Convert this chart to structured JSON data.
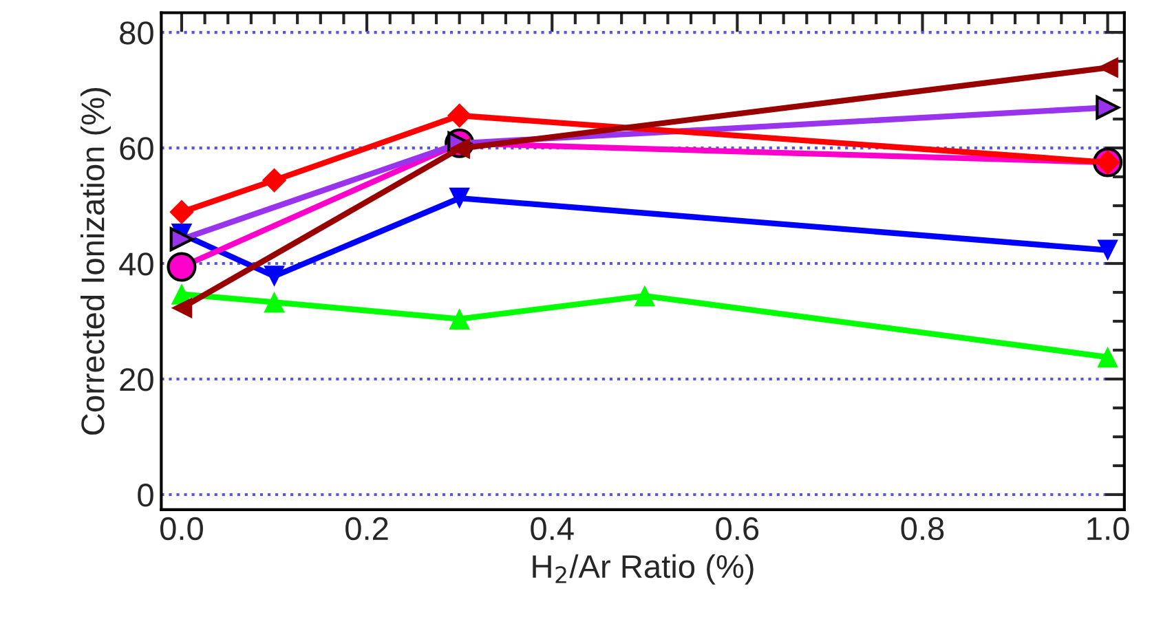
{
  "chart_data": {
    "type": "line",
    "xlabel": "H$_{2}$/Ar Ratio (%)",
    "ylabel": "Corrected Ionization (%)",
    "xlim": [
      -0.022,
      1.018
    ],
    "xticks": [
      {
        "value": 0,
        "label": "0.0"
      },
      0.2,
      0.4,
      0.6,
      0.8,
      {
        "value": 1,
        "label": "1.0"
      }
    ],
    "ylim": [
      -2.6,
      83.4
    ],
    "yticks": [
      0,
      20,
      40,
      60,
      80
    ],
    "grid": "y",
    "line_style": "solid",
    "series": [
      {
        "color": "#00ff00",
        "marker": "triangle",
        "x": [
          0,
          0.1,
          0.3,
          0.5,
          1.0
        ],
        "values": [
          34.7,
          33.3,
          30.4,
          34.4,
          23.8
        ]
      },
      {
        "color": "#0000ff",
        "marker": "triangle_down",
        "x": [
          0,
          0.1,
          0.3,
          1.0
        ],
        "values": [
          45.1,
          37.8,
          51.3,
          42.3
        ]
      },
      {
        "color": "#ff00cc",
        "marker": "circle",
        "x": [
          0,
          0.3,
          1.0
        ],
        "values": [
          39.4,
          60.8,
          57.5
        ]
      },
      {
        "color": "#9933ee",
        "marker": "triangle_right",
        "x": [
          0,
          0.3,
          1.0
        ],
        "values": [
          44.2,
          60.8,
          67.0
        ]
      },
      {
        "color": "#ff0000",
        "marker": "diamond",
        "x": [
          0,
          0.1,
          0.3,
          1.0
        ],
        "values": [
          48.9,
          54.4,
          65.6,
          57.5
        ]
      },
      {
        "color": "#990000",
        "marker": "triangle_left",
        "x": [
          0,
          0.3,
          1.0
        ],
        "values": [
          32.3,
          59.9,
          73.9
        ]
      }
    ]
  }
}
